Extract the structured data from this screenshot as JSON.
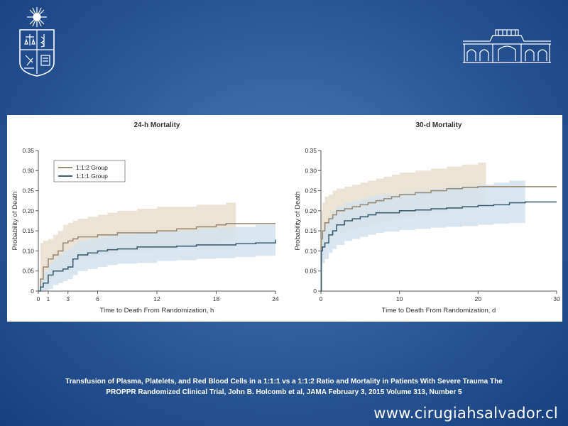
{
  "colors": {
    "group_112": "#9b8b74",
    "group_111": "#3f5f73",
    "band_112": "#e8dfcf",
    "band_111": "#d3e2ec",
    "background": "#2f5d9c"
  },
  "logos": {
    "left_icon": "university-crest-icon",
    "right_icon": "building-facade-icon"
  },
  "citation": {
    "line1": "Transfusion of Plasma, Platelets, and Red Blood Cells in a 1:1:1  vs a 1:1:2 Ratio and Mortality in Patients With Severe Trauma The",
    "line2": "PROPPR Randomized Clinical Trial, John B. Holcomb et al, JAMA February 3, 2015  Volume 313,  Number 5"
  },
  "website": "www.cirugiahsalvador.cl",
  "chart_data": [
    {
      "type": "line",
      "title": "24-h Mortality",
      "xlabel": "Time to Death From Randomization, h",
      "ylabel": "Probability of Death",
      "xlim": [
        0,
        24
      ],
      "ylim": [
        0,
        0.35
      ],
      "xticks": [
        0,
        1,
        3,
        6,
        12,
        18,
        24
      ],
      "yticks": [
        0,
        0.05,
        0.1,
        0.15,
        0.2,
        0.25,
        0.3,
        0.35
      ],
      "ytick_labels": [
        "0",
        "0.05",
        "0.10",
        "0.15",
        "0.20",
        "0.25",
        "0.30",
        "0.35"
      ],
      "legend": {
        "position": "top-left",
        "entries": [
          "1:1:2 Group",
          "1:1:1 Group"
        ]
      },
      "series": [
        {
          "name": "1:1:2 Group",
          "x": [
            0,
            0.2,
            0.5,
            1,
            1.5,
            2,
            2.5,
            3,
            3.5,
            4,
            5,
            6,
            7,
            8,
            10,
            12,
            14,
            16,
            18,
            19,
            20,
            24
          ],
          "y": [
            0,
            0.03,
            0.06,
            0.08,
            0.09,
            0.1,
            0.12,
            0.125,
            0.13,
            0.135,
            0.135,
            0.14,
            0.14,
            0.145,
            0.145,
            0.15,
            0.155,
            0.16,
            0.165,
            0.168,
            0.168,
            0.168
          ],
          "ci_upper": [
            0,
            0.12,
            0.125,
            0.13,
            0.14,
            0.15,
            0.165,
            0.17,
            0.175,
            0.18,
            0.185,
            0.19,
            0.195,
            0.2,
            0.205,
            0.21,
            0.21,
            0.215,
            0.215,
            0.22,
            0.22,
            0.22
          ],
          "ci_lower": [
            0,
            0,
            0.01,
            0.03,
            0.04,
            0.05,
            0.06,
            0.07,
            0.075,
            0.08,
            0.085,
            0.09,
            0.095,
            0.1,
            0.1,
            0.105,
            0.11,
            0.115,
            0.12,
            0.125,
            0.125,
            0.125
          ],
          "ci_until": 20
        },
        {
          "name": "1:1:1 Group",
          "x": [
            0,
            0.2,
            0.5,
            1,
            1.5,
            2,
            2.5,
            3,
            3.5,
            4,
            5,
            6,
            7,
            8,
            10,
            12,
            14,
            16,
            18,
            20,
            22,
            24
          ],
          "y": [
            0,
            0.01,
            0.02,
            0.04,
            0.05,
            0.05,
            0.055,
            0.06,
            0.08,
            0.09,
            0.095,
            0.1,
            0.103,
            0.105,
            0.11,
            0.11,
            0.112,
            0.115,
            0.115,
            0.118,
            0.12,
            0.128
          ],
          "ci_upper": [
            0,
            0.03,
            0.05,
            0.07,
            0.08,
            0.09,
            0.1,
            0.105,
            0.115,
            0.125,
            0.13,
            0.135,
            0.14,
            0.142,
            0.145,
            0.148,
            0.15,
            0.155,
            0.158,
            0.16,
            0.165,
            0.17
          ],
          "ci_lower": [
            0,
            0,
            0,
            0.005,
            0.015,
            0.02,
            0.025,
            0.03,
            0.04,
            0.05,
            0.055,
            0.06,
            0.065,
            0.068,
            0.07,
            0.075,
            0.077,
            0.08,
            0.082,
            0.085,
            0.088,
            0.09
          ],
          "ci_until": 24
        }
      ]
    },
    {
      "type": "line",
      "title": "30-d Mortality",
      "xlabel": "Time to Death From Randomization, d",
      "ylabel": "Probability of Death",
      "xlim": [
        0,
        30
      ],
      "ylim": [
        0,
        0.35
      ],
      "xticks": [
        0,
        10,
        20,
        30
      ],
      "yticks": [
        0,
        0.05,
        0.1,
        0.15,
        0.2,
        0.25,
        0.3,
        0.35
      ],
      "ytick_labels": [
        "0",
        "0.05",
        "0.10",
        "0.15",
        "0.20",
        "0.25",
        "0.30",
        "0.35"
      ],
      "series": [
        {
          "name": "1:1:2 Group",
          "x": [
            0,
            0.05,
            0.2,
            0.5,
            1,
            1.5,
            2,
            3,
            4,
            5,
            6,
            7,
            8,
            9,
            10,
            12,
            14,
            16,
            18,
            20,
            21,
            26,
            30
          ],
          "y": [
            0,
            0.13,
            0.15,
            0.17,
            0.18,
            0.19,
            0.2,
            0.205,
            0.21,
            0.215,
            0.22,
            0.225,
            0.23,
            0.235,
            0.24,
            0.245,
            0.25,
            0.255,
            0.258,
            0.26,
            0.26,
            0.26,
            0.26
          ],
          "ci_upper": [
            0,
            0.2,
            0.22,
            0.235,
            0.24,
            0.25,
            0.255,
            0.26,
            0.265,
            0.27,
            0.275,
            0.28,
            0.285,
            0.29,
            0.295,
            0.3,
            0.305,
            0.31,
            0.315,
            0.32,
            0.32
          ],
          "ci_lower": [
            0,
            0.08,
            0.1,
            0.12,
            0.13,
            0.14,
            0.145,
            0.15,
            0.155,
            0.16,
            0.165,
            0.17,
            0.175,
            0.18,
            0.185,
            0.19,
            0.195,
            0.2,
            0.205,
            0.21,
            0.21
          ],
          "ci_until": 21
        },
        {
          "name": "1:1:1 Group",
          "x": [
            0,
            0.05,
            0.2,
            0.5,
            1,
            1.5,
            2,
            3,
            4,
            5,
            6,
            7,
            8,
            10,
            12,
            14,
            16,
            18,
            20,
            22,
            24,
            26,
            30
          ],
          "y": [
            0,
            0.1,
            0.11,
            0.12,
            0.14,
            0.15,
            0.165,
            0.175,
            0.18,
            0.185,
            0.19,
            0.195,
            0.195,
            0.2,
            0.202,
            0.205,
            0.207,
            0.21,
            0.213,
            0.215,
            0.22,
            0.222,
            0.222
          ],
          "ci_upper": [
            0,
            0.14,
            0.15,
            0.165,
            0.185,
            0.2,
            0.21,
            0.22,
            0.225,
            0.23,
            0.235,
            0.24,
            0.24,
            0.245,
            0.25,
            0.255,
            0.26,
            0.262,
            0.265,
            0.27,
            0.275,
            0.278
          ],
          "ci_lower": [
            0,
            0.06,
            0.07,
            0.08,
            0.095,
            0.105,
            0.115,
            0.125,
            0.13,
            0.135,
            0.14,
            0.145,
            0.148,
            0.152,
            0.155,
            0.158,
            0.16,
            0.162,
            0.165,
            0.168,
            0.17,
            0.172
          ],
          "ci_until": 26
        }
      ]
    }
  ]
}
